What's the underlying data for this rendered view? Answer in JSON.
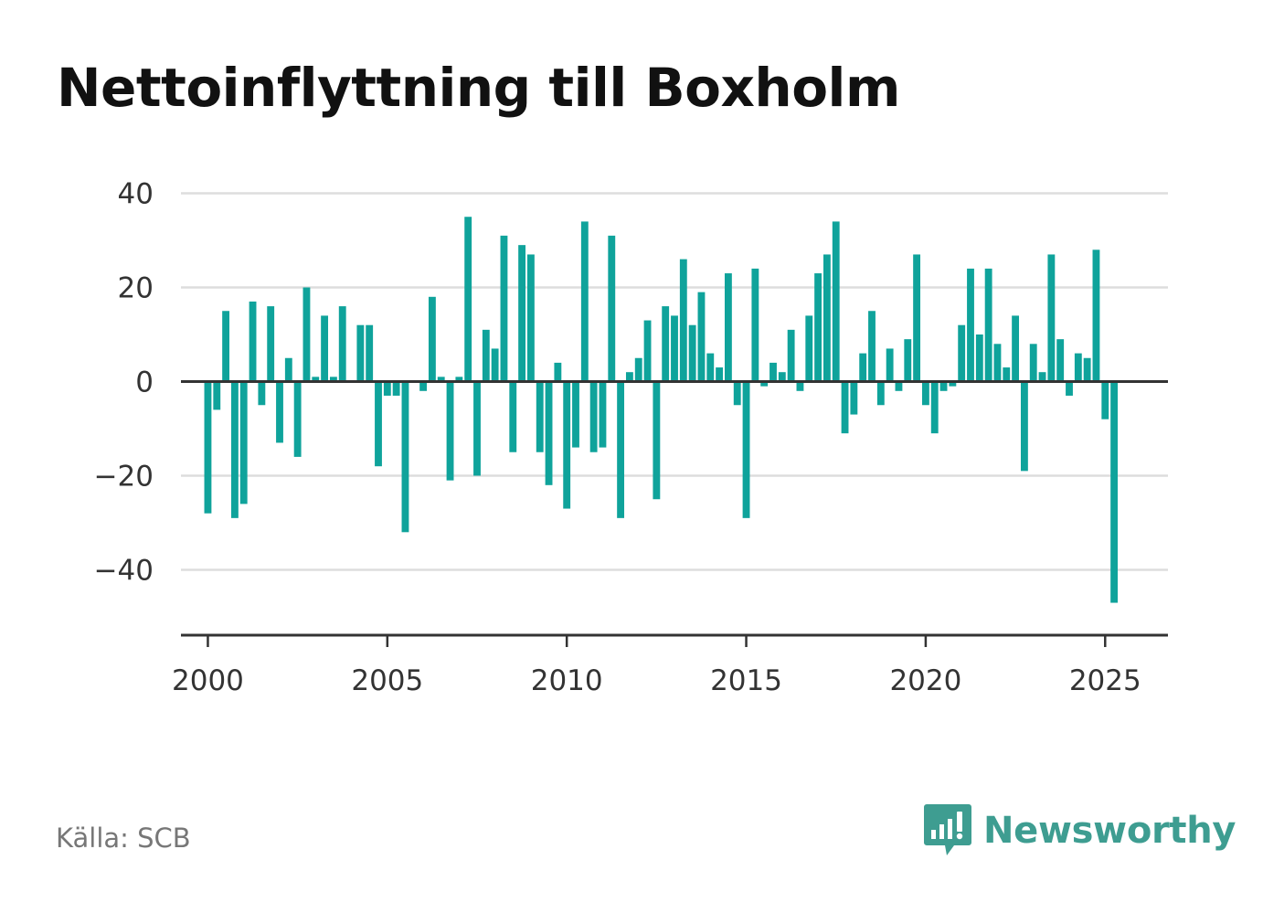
{
  "colors": {
    "bar": "#0fa39b",
    "grid": "#dddddd",
    "axis": "#333333",
    "brand": "#3e9d91"
  },
  "header": {
    "title": "Nettoinflyttning till Boxholm"
  },
  "footer": {
    "source": "Källa: SCB",
    "brand": "Newsworthy",
    "brand_icon": "bar-chart-speech-bubble-icon"
  },
  "chart_data": {
    "type": "bar",
    "title": "Nettoinflyttning till Boxholm",
    "xlabel": "",
    "ylabel": "",
    "grid": true,
    "legend": "none",
    "xlim": [
      1999.25,
      2026.75
    ],
    "ylim": [
      -54,
      40
    ],
    "yticks": [
      40,
      20,
      0,
      -20,
      -40
    ],
    "ytick_labels": [
      "40",
      "20",
      "0",
      "−20",
      "−40"
    ],
    "xticks": [
      2000,
      2005,
      2010,
      2015,
      2020,
      2025
    ],
    "xtick_labels": [
      "2000",
      "2005",
      "2010",
      "2015",
      "2020",
      "2025"
    ],
    "periods": [
      "2000K1",
      "2000K2",
      "2000K3",
      "2000K4",
      "2001K1",
      "2001K2",
      "2001K3",
      "2001K4",
      "2002K1",
      "2002K2",
      "2002K3",
      "2002K4",
      "2003K1",
      "2003K2",
      "2003K3",
      "2003K4",
      "2004K1",
      "2004K2",
      "2004K3",
      "2004K4",
      "2005K1",
      "2005K2",
      "2005K3",
      "2005K4",
      "2006K1",
      "2006K2",
      "2006K3",
      "2006K4",
      "2007K1",
      "2007K2",
      "2007K3",
      "2007K4",
      "2008K1",
      "2008K2",
      "2008K3",
      "2008K4",
      "2009K1",
      "2009K2",
      "2009K3",
      "2009K4",
      "2010K1",
      "2010K2",
      "2010K3",
      "2010K4",
      "2011K1",
      "2011K2",
      "2011K3",
      "2011K4",
      "2012K1",
      "2012K2",
      "2012K3",
      "2012K4",
      "2013K1",
      "2013K2",
      "2013K3",
      "2013K4",
      "2014K1",
      "2014K2",
      "2014K3",
      "2014K4",
      "2015K1",
      "2015K2",
      "2015K3",
      "2015K4",
      "2016K1",
      "2016K2",
      "2016K3",
      "2016K4",
      "2017K1",
      "2017K2",
      "2017K3",
      "2017K4",
      "2018K1",
      "2018K2",
      "2018K3",
      "2018K4",
      "2019K1",
      "2019K2",
      "2019K3",
      "2019K4",
      "2020K1",
      "2020K2",
      "2020K3",
      "2020K4",
      "2021K1",
      "2021K2",
      "2021K3",
      "2021K4",
      "2022K1",
      "2022K2",
      "2022K3",
      "2022K4",
      "2023K1",
      "2023K2",
      "2023K3",
      "2023K4",
      "2024K1",
      "2024K2",
      "2024K3",
      "2024K4",
      "2025K1",
      "2025K2"
    ],
    "values": [
      -28,
      -6,
      15,
      -29,
      -26,
      17,
      -5,
      16,
      -13,
      5,
      -16,
      20,
      1,
      14,
      1,
      16,
      0,
      12,
      12,
      -18,
      -3,
      -3,
      -32,
      0,
      -2,
      18,
      1,
      -21,
      1,
      35,
      -20,
      11,
      7,
      31,
      -15,
      29,
      27,
      -15,
      -22,
      4,
      -27,
      -14,
      34,
      -15,
      -14,
      31,
      -29,
      2,
      5,
      13,
      -25,
      16,
      14,
      26,
      12,
      19,
      6,
      3,
      23,
      -5,
      -29,
      24,
      -1,
      4,
      2,
      11,
      -2,
      14,
      23,
      27,
      34,
      -11,
      -7,
      6,
      15,
      -5,
      7,
      -2,
      9,
      27,
      -5,
      -11,
      -2,
      -1,
      12,
      24,
      10,
      24,
      8,
      3,
      14,
      -19,
      8,
      2,
      27,
      9,
      -3,
      6,
      5,
      28,
      -8,
      -47
    ]
  }
}
